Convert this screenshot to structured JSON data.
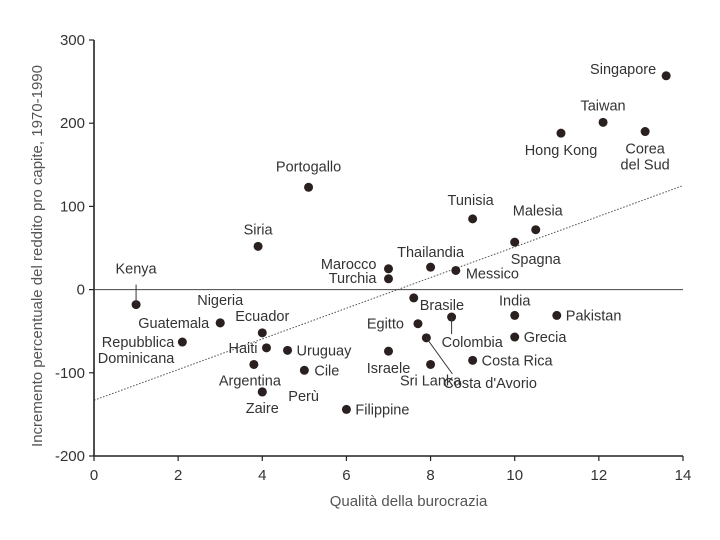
{
  "chart_data": {
    "type": "scatter",
    "title": "",
    "xlabel": "Qualità della burocrazia",
    "ylabel": "Incremento percentuale del reddito pro capite, 1970-1990",
    "xlim": [
      0,
      14
    ],
    "ylim": [
      -200,
      300
    ],
    "xticks": [
      "0",
      "2",
      "4",
      "6",
      "8",
      "10",
      "12",
      "14"
    ],
    "yticks": [
      "300",
      "200",
      "100",
      "0",
      "-100",
      "-200"
    ],
    "grid": false,
    "zero_line": true,
    "trendline": {
      "x": [
        0,
        14
      ],
      "y": [
        -133,
        125
      ]
    },
    "points": [
      {
        "name": "Singapore",
        "x": 13.6,
        "y": 257
      },
      {
        "name": "Taiwan",
        "x": 12.1,
        "y": 201
      },
      {
        "name": "Hong Kong",
        "x": 11.1,
        "y": 188
      },
      {
        "name": "Corea\ndel Sud",
        "x": 13.1,
        "y": 190
      },
      {
        "name": "Portogallo",
        "x": 5.1,
        "y": 123
      },
      {
        "name": "Tunisia",
        "x": 9.0,
        "y": 85
      },
      {
        "name": "Malesia",
        "x": 10.5,
        "y": 72
      },
      {
        "name": "Spagna",
        "x": 10.0,
        "y": 57
      },
      {
        "name": "Siria",
        "x": 3.9,
        "y": 52
      },
      {
        "name": "Marocco",
        "x": 7.0,
        "y": 25
      },
      {
        "name": "Turchia",
        "x": 7.0,
        "y": 13
      },
      {
        "name": "Thailandia",
        "x": 8.0,
        "y": 27
      },
      {
        "name": "Messico",
        "x": 8.6,
        "y": 23
      },
      {
        "name": "Kenya",
        "x": 1.0,
        "y": -18
      },
      {
        "name": "Brasile",
        "x": 7.6,
        "y": -10
      },
      {
        "name": "India",
        "x": 10.0,
        "y": -31
      },
      {
        "name": "Pakistan",
        "x": 11.0,
        "y": -31
      },
      {
        "name": "Nigeria",
        "x": 3.0,
        "y": -40
      },
      {
        "name": "Guatemala",
        "x": 3.0,
        "y": -40
      },
      {
        "name": "Ecuador",
        "x": 4.0,
        "y": -52
      },
      {
        "name": "Egitto",
        "x": 7.7,
        "y": -41
      },
      {
        "name": "Colombia",
        "x": 8.5,
        "y": -33
      },
      {
        "name": "Grecia",
        "x": 10.0,
        "y": -57
      },
      {
        "name": "Repubblica\nDominicana",
        "x": 2.1,
        "y": -63
      },
      {
        "name": "Haiti",
        "x": 4.1,
        "y": -70
      },
      {
        "name": "Uruguay",
        "x": 4.6,
        "y": -73
      },
      {
        "name": "Israele",
        "x": 7.0,
        "y": -74
      },
      {
        "name": "Costa d'Avorio",
        "x": 7.9,
        "y": -58
      },
      {
        "name": "Costa Rica",
        "x": 9.0,
        "y": -85
      },
      {
        "name": "Argentina",
        "x": 3.8,
        "y": -90
      },
      {
        "name": "Sri Lanka",
        "x": 8.0,
        "y": -90
      },
      {
        "name": "Cile",
        "x": 5.0,
        "y": -97
      },
      {
        "name": "Perù",
        "x": 4.0,
        "y": -123
      },
      {
        "name": "Zaire",
        "x": 4.0,
        "y": -123
      },
      {
        "name": "Filippine",
        "x": 6.0,
        "y": -144
      }
    ]
  }
}
